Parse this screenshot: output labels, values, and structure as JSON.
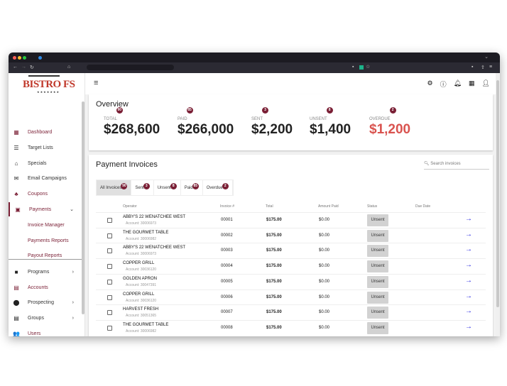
{
  "brand": {
    "logo": "BISTRO FS"
  },
  "sidebar": {
    "items": [
      {
        "label": "Dashboard",
        "icon": "dashboard-icon",
        "glyph": "▦"
      },
      {
        "label": "Target Lists",
        "icon": "list-icon",
        "glyph": "☰"
      },
      {
        "label": "Specials",
        "icon": "cake-icon",
        "glyph": "⌂"
      },
      {
        "label": "Email Campaigns",
        "icon": "mail-icon",
        "glyph": "✉"
      },
      {
        "label": "Coupons",
        "icon": "coupon-icon",
        "glyph": "♣"
      },
      {
        "label": "Payments",
        "icon": "payments-icon",
        "glyph": "▣"
      },
      {
        "label": "Programs",
        "icon": "briefcase-icon",
        "glyph": "■"
      },
      {
        "label": "Accounts",
        "icon": "store-icon",
        "glyph": "▤"
      },
      {
        "label": "Prospecting",
        "icon": "location-pin-icon",
        "glyph": "⬤"
      },
      {
        "label": "Groups",
        "icon": "groups-icon",
        "glyph": "▤"
      },
      {
        "label": "Users",
        "icon": "users-icon",
        "glyph": "👥"
      }
    ],
    "payments_sub": [
      "Invoice Manager",
      "Payments Reports",
      "Payout Reports"
    ]
  },
  "overview": {
    "title": "Overview",
    "stats": [
      {
        "label": "TOTAL",
        "count": "90",
        "value": "$268,600"
      },
      {
        "label": "PAID",
        "count": "85",
        "value": "$266,000"
      },
      {
        "label": "SENT",
        "count": "3",
        "value": "$2,200"
      },
      {
        "label": "UNSENT",
        "count": "8",
        "value": "$1,400"
      },
      {
        "label": "OVERDUE",
        "count": "2",
        "value": "$1,200",
        "color": "#d9534f"
      }
    ]
  },
  "invoices": {
    "title": "Payment Invoices",
    "search_placeholder": "Search invoices",
    "filters": [
      {
        "label": "All Invoices",
        "count": "90"
      },
      {
        "label": "Sent",
        "count": "3"
      },
      {
        "label": "Unsent",
        "count": "8"
      },
      {
        "label": "Paid",
        "count": "85"
      },
      {
        "label": "Overdue",
        "count": "2"
      }
    ],
    "columns": [
      "Operator",
      "Invoice #",
      "Total",
      "Amount Paid",
      "Status",
      "Due Date"
    ],
    "rows": [
      {
        "operator": "ABBY'S 22 WENATCHEE WEST",
        "account": "Account: 30006973",
        "invoice": "00001",
        "total": "$175.00",
        "paid": "$0.00",
        "status": "Unsent"
      },
      {
        "operator": "THE GOURMET TABLE",
        "account": "Account: 30006982",
        "invoice": "00002",
        "total": "$175.00",
        "paid": "$0.00",
        "status": "Unsent"
      },
      {
        "operator": "ABBY'S 22 WENATCHEE WEST",
        "account": "Account: 30006973",
        "invoice": "00003",
        "total": "$175.00",
        "paid": "$0.00",
        "status": "Unsent"
      },
      {
        "operator": "COPPER GRILL",
        "account": "Account: 30036120",
        "invoice": "00004",
        "total": "$175.00",
        "paid": "$0.00",
        "status": "Unsent"
      },
      {
        "operator": "GOLDEN APRON",
        "account": "Account: 30047391",
        "invoice": "00005",
        "total": "$175.00",
        "paid": "$0.00",
        "status": "Unsent"
      },
      {
        "operator": "COPPER GRILL",
        "account": "Account: 30036120",
        "invoice": "00006",
        "total": "$175.00",
        "paid": "$0.00",
        "status": "Unsent"
      },
      {
        "operator": "HARVEST FRESH",
        "account": "Account: 30051365",
        "invoice": "00007",
        "total": "$175.00",
        "paid": "$0.00",
        "status": "Unsent"
      },
      {
        "operator": "THE GOURMET TABLE",
        "account": "Account: 30006982",
        "invoice": "00008",
        "total": "$175.00",
        "paid": "$0.00",
        "status": "Unsent"
      }
    ]
  },
  "colors": {
    "brand": "#7a1f35",
    "overdue": "#d9534f",
    "arrow": "#2323e0"
  }
}
